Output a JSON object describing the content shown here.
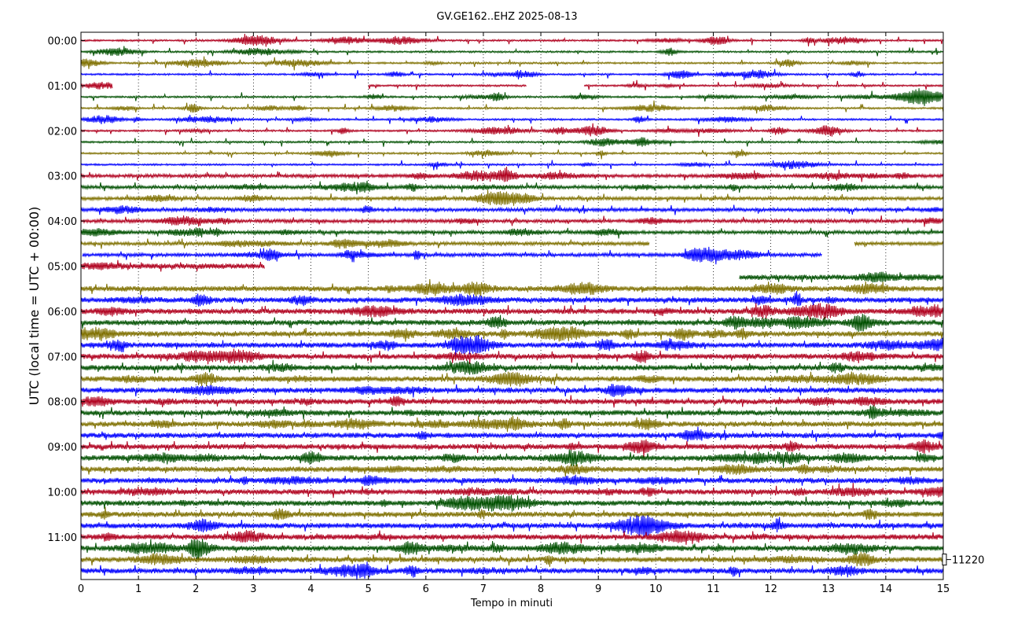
{
  "chart_data": {
    "type": "line",
    "title": "GV.GE162..EHZ 2025-08-13",
    "xlabel": "Tempo in minuti",
    "ylabel": "UTC (local time = UTC + 00:00)",
    "xlim": [
      0,
      15
    ],
    "x_ticks": [
      "0",
      "1",
      "2",
      "3",
      "4",
      "5",
      "6",
      "7",
      "8",
      "9",
      "10",
      "11",
      "12",
      "13",
      "14",
      "15"
    ],
    "y_tick_labels": [
      "00:00",
      "01:00",
      "02:00",
      "03:00",
      "04:00",
      "05:00",
      "06:00",
      "07:00",
      "08:00",
      "09:00",
      "10:00",
      "11:00"
    ],
    "trace_interval_minutes": 15,
    "trace_count": 48,
    "trace_colors": [
      "#b0001e",
      "#005000",
      "#7f7000",
      "#0000ff"
    ],
    "grid": "vertical dotted",
    "scale_label": "11220",
    "gaps": [
      {
        "trace": 4,
        "from_min": 0.55,
        "to_min": 5.0
      },
      {
        "trace": 4,
        "from_min": 7.75,
        "to_min": 8.75
      },
      {
        "trace": 18,
        "from_min": 9.9,
        "to_min": 13.45
      },
      {
        "trace": 19,
        "from_min": 0.0,
        "to_min": 0.02
      },
      {
        "trace": 19,
        "from_min": 12.9,
        "to_min": 15.0
      },
      {
        "trace": 20,
        "from_min": 3.2,
        "to_min": 15.0
      },
      {
        "trace": 21,
        "from_min": 0.0,
        "to_min": 11.45
      }
    ]
  }
}
